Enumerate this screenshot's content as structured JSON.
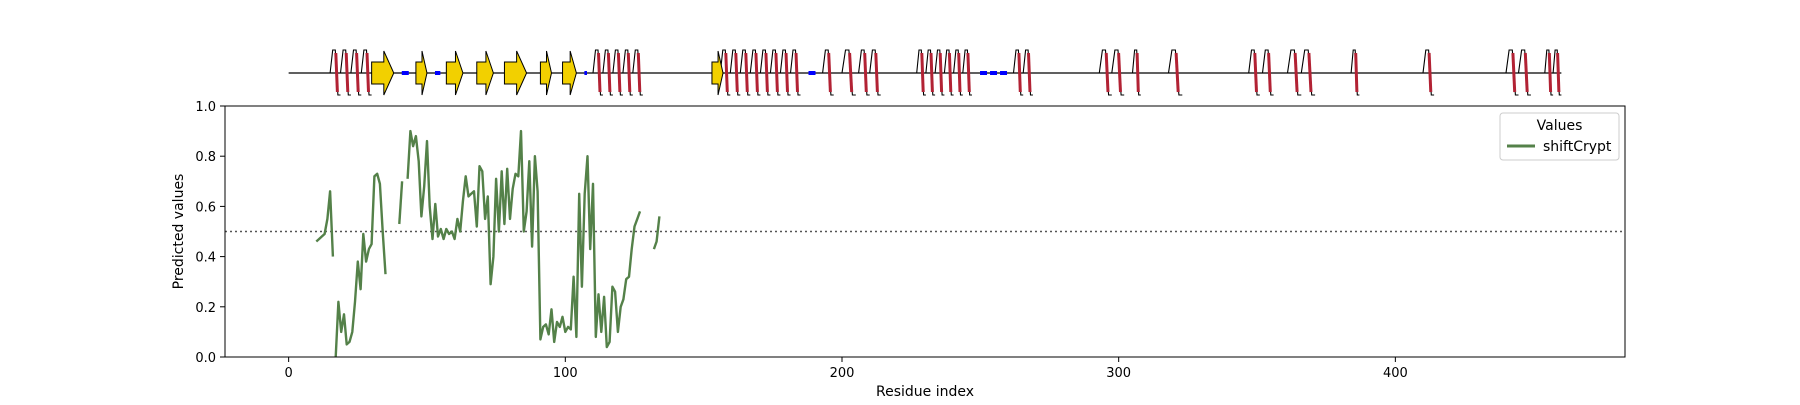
{
  "chart_data": {
    "type": "line",
    "title": "",
    "xlabel": "Residue index",
    "ylabel": "Predicted values",
    "xlim": [
      -23,
      483
    ],
    "ylim": [
      0,
      1
    ],
    "xticks": [
      0,
      100,
      200,
      300,
      400
    ],
    "yticks": [
      0.0,
      0.2,
      0.4,
      0.6,
      0.8,
      1.0
    ],
    "xtick_labels": [
      "0",
      "100",
      "200",
      "300",
      "400"
    ],
    "ytick_labels": [
      "0.0",
      "0.2",
      "0.4",
      "0.6",
      "0.8",
      "1.0"
    ],
    "threshold": 0.5,
    "grid": false,
    "legend": {
      "title": "Values",
      "placement": "top-right"
    },
    "series": [
      {
        "name": "shiftCrypt",
        "color": "#548149",
        "segments": [
          [
            [
              10,
              0.46
            ],
            [
              11,
              0.47
            ],
            [
              12,
              0.48
            ],
            [
              13,
              0.49
            ],
            [
              14,
              0.55
            ],
            [
              15,
              0.66
            ],
            [
              16,
              0.4
            ]
          ],
          [
            [
              17,
              0.0
            ],
            [
              18,
              0.22
            ],
            [
              19,
              0.1
            ],
            [
              20,
              0.17
            ],
            [
              21,
              0.05
            ],
            [
              22,
              0.06
            ],
            [
              23,
              0.1
            ],
            [
              24,
              0.22
            ],
            [
              25,
              0.38
            ],
            [
              26,
              0.27
            ],
            [
              27,
              0.49
            ],
            [
              28,
              0.38
            ],
            [
              29,
              0.43
            ],
            [
              30,
              0.45
            ],
            [
              31,
              0.72
            ],
            [
              32,
              0.73
            ],
            [
              33,
              0.69
            ],
            [
              34,
              0.5
            ],
            [
              35,
              0.33
            ]
          ],
          [
            [
              40,
              0.53
            ],
            [
              41,
              0.7
            ]
          ],
          [
            [
              43,
              0.71
            ],
            [
              44,
              0.9
            ],
            [
              45,
              0.84
            ],
            [
              46,
              0.88
            ],
            [
              47,
              0.78
            ],
            [
              48,
              0.56
            ],
            [
              49,
              0.68
            ],
            [
              50,
              0.86
            ],
            [
              51,
              0.6
            ],
            [
              52,
              0.47
            ],
            [
              53,
              0.61
            ],
            [
              54,
              0.48
            ],
            [
              55,
              0.51
            ],
            [
              56,
              0.47
            ],
            [
              57,
              0.51
            ],
            [
              58,
              0.49
            ],
            [
              59,
              0.5
            ],
            [
              60,
              0.47
            ],
            [
              61,
              0.55
            ],
            [
              62,
              0.5
            ],
            [
              63,
              0.62
            ],
            [
              64,
              0.72
            ],
            [
              65,
              0.64
            ],
            [
              66,
              0.65
            ],
            [
              67,
              0.66
            ],
            [
              68,
              0.52
            ],
            [
              69,
              0.76
            ],
            [
              70,
              0.74
            ],
            [
              71,
              0.55
            ],
            [
              72,
              0.64
            ],
            [
              73,
              0.29
            ],
            [
              74,
              0.4
            ],
            [
              75,
              0.71
            ],
            [
              76,
              0.5
            ],
            [
              77,
              0.74
            ],
            [
              78,
              0.53
            ],
            [
              79,
              0.75
            ],
            [
              80,
              0.55
            ],
            [
              81,
              0.67
            ],
            [
              82,
              0.73
            ],
            [
              83,
              0.72
            ],
            [
              84,
              0.9
            ],
            [
              85,
              0.5
            ],
            [
              86,
              0.58
            ],
            [
              87,
              0.78
            ],
            [
              88,
              0.44
            ],
            [
              89,
              0.8
            ],
            [
              90,
              0.66
            ],
            [
              91,
              0.07
            ],
            [
              92,
              0.12
            ],
            [
              93,
              0.13
            ],
            [
              94,
              0.09
            ],
            [
              95,
              0.19
            ],
            [
              96,
              0.06
            ],
            [
              97,
              0.14
            ],
            [
              98,
              0.12
            ],
            [
              99,
              0.16
            ],
            [
              100,
              0.1
            ],
            [
              101,
              0.12
            ],
            [
              102,
              0.11
            ],
            [
              103,
              0.32
            ],
            [
              104,
              0.08
            ],
            [
              105,
              0.65
            ],
            [
              106,
              0.28
            ],
            [
              107,
              0.65
            ],
            [
              108,
              0.8
            ],
            [
              109,
              0.43
            ],
            [
              110,
              0.69
            ],
            [
              111,
              0.08
            ],
            [
              112,
              0.25
            ],
            [
              113,
              0.1
            ],
            [
              114,
              0.24
            ],
            [
              115,
              0.04
            ],
            [
              116,
              0.06
            ],
            [
              117,
              0.28
            ],
            [
              118,
              0.26
            ],
            [
              119,
              0.1
            ],
            [
              120,
              0.2
            ],
            [
              121,
              0.23
            ],
            [
              122,
              0.31
            ],
            [
              123,
              0.32
            ],
            [
              124,
              0.43
            ],
            [
              125,
              0.52
            ],
            [
              126,
              0.55
            ],
            [
              127,
              0.58
            ]
          ],
          [
            [
              132,
              0.43
            ],
            [
              133,
              0.46
            ],
            [
              134,
              0.56
            ]
          ]
        ]
      }
    ],
    "secondary_structure": {
      "length": 460,
      "helices": [
        [
          15,
          30
        ],
        [
          110,
          128
        ],
        [
          156,
          185
        ],
        [
          193,
          197
        ],
        [
          200,
          205
        ],
        [
          206,
          214
        ],
        [
          227,
          247
        ],
        [
          262,
          269
        ],
        [
          293,
          302
        ],
        [
          305,
          308
        ],
        [
          318,
          323
        ],
        [
          347,
          351
        ],
        [
          352,
          356
        ],
        [
          361,
          366
        ],
        [
          366,
          371
        ],
        [
          384,
          387
        ],
        [
          410,
          414
        ],
        [
          440,
          449
        ],
        [
          454,
          460
        ]
      ],
      "strands": [
        [
          30,
          38
        ],
        [
          46,
          50
        ],
        [
          57,
          63
        ],
        [
          68,
          74
        ],
        [
          78,
          86
        ],
        [
          91,
          95
        ],
        [
          99,
          104
        ],
        [
          153,
          157
        ]
      ],
      "coils": [
        [
          38,
          46
        ],
        [
          50,
          57
        ],
        [
          63,
          68
        ],
        [
          74,
          78
        ],
        [
          86,
          91
        ],
        [
          95,
          99
        ],
        [
          104,
          110
        ],
        [
          128,
          133
        ],
        [
          185,
          193
        ],
        [
          197,
          200
        ],
        [
          214,
          227
        ],
        [
          247,
          262
        ],
        [
          269,
          293
        ],
        [
          308,
          318
        ],
        [
          323,
          347
        ],
        [
          356,
          361
        ],
        [
          371,
          384
        ],
        [
          387,
          410
        ],
        [
          414,
          440
        ],
        [
          449,
          454
        ]
      ],
      "colors": {
        "helix": "#b22234",
        "strand": "#f2d000",
        "coil": "#000000",
        "highlight": "#0000ff"
      }
    }
  }
}
